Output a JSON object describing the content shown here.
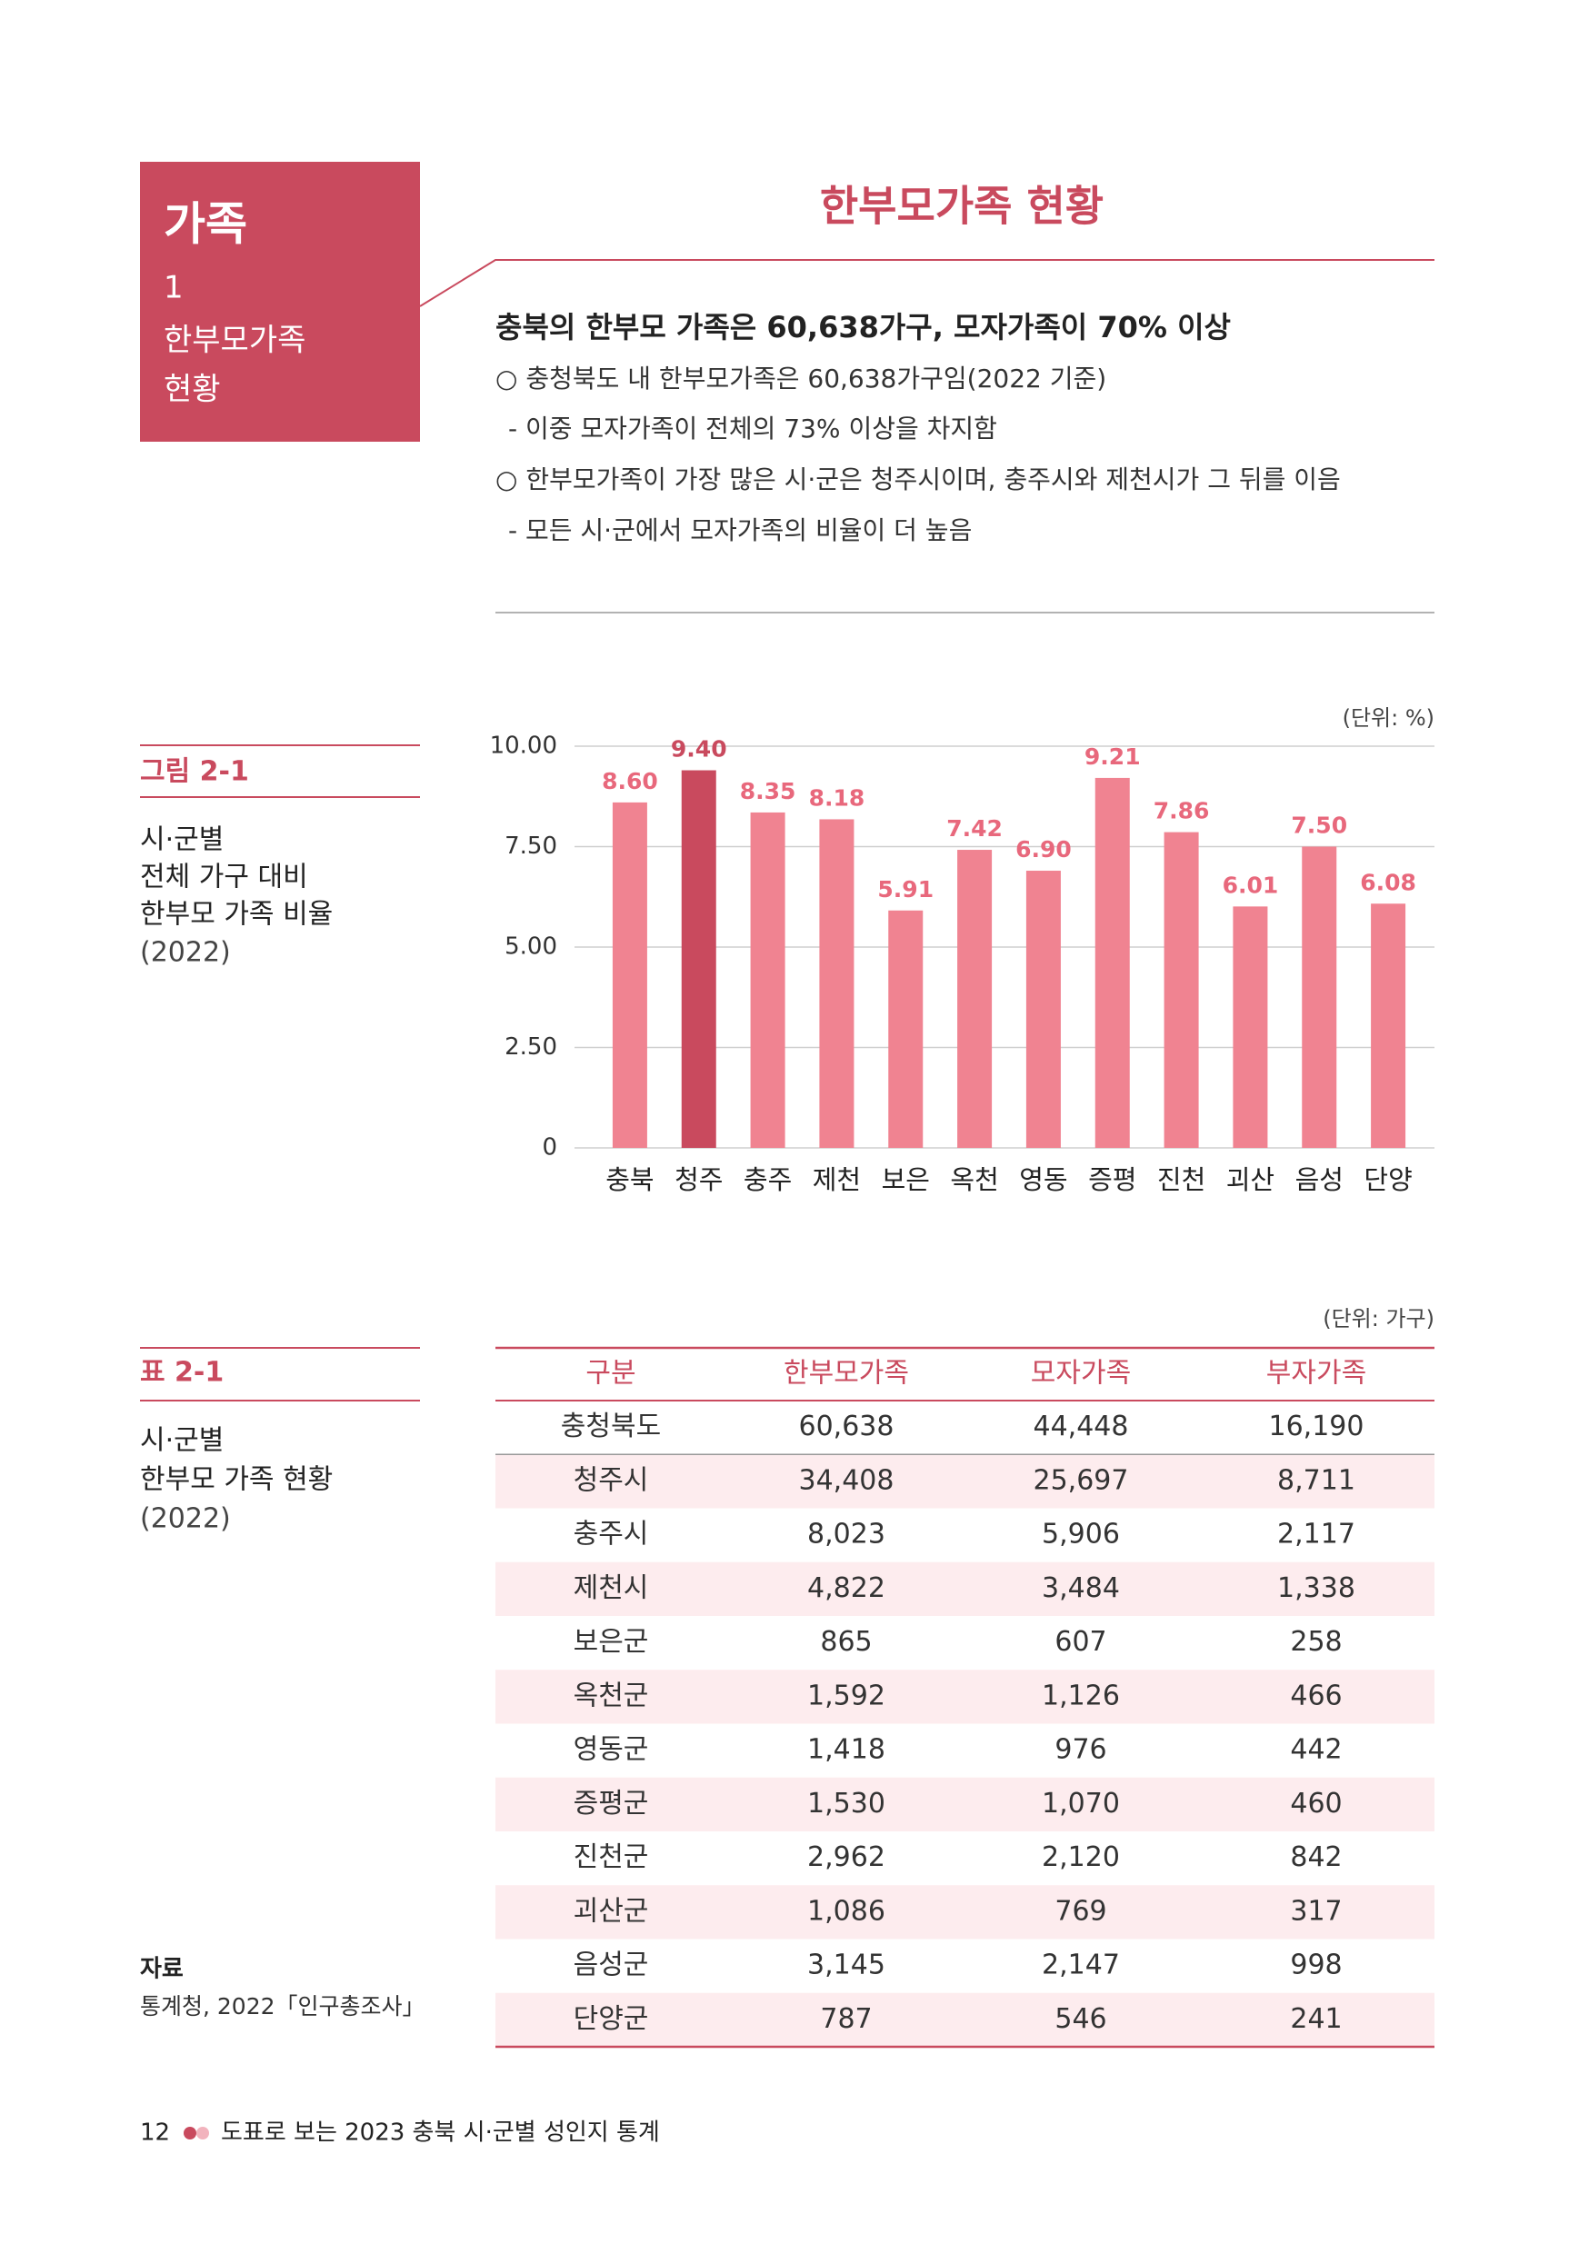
{
  "header": {
    "section": "가족",
    "number": "1",
    "topic_lines": [
      "한부모가족",
      "현황"
    ],
    "title": "한부모가족 현황"
  },
  "summary": {
    "headline": "충북의 한부모 가족은 60,638가구, 모자가족이 70% 이상",
    "bullets": [
      "○ 충청북도 내 한부모가족은 60,638가구임(2022 기준)",
      "- 이중 모자가족이 전체의 73% 이상을 차지함",
      "○ 한부모가족이 가장 많은 시·군은 청주시이며, 충주시와 제천시가 그 뒤를 이음",
      "- 모든 시·군에서 모자가족의 비율이 더 높음"
    ]
  },
  "figure": {
    "label": "그림 2-1",
    "caption_lines": [
      "시·군별",
      "전체 가구 대비",
      "한부모 가족 비율"
    ],
    "year": "(2022)"
  },
  "chart_data": {
    "type": "bar",
    "unit": "(단위: %)",
    "categories": [
      "충북",
      "청주",
      "충주",
      "제천",
      "보은",
      "옥천",
      "영동",
      "증평",
      "진천",
      "괴산",
      "음성",
      "단양"
    ],
    "values": [
      8.6,
      9.4,
      8.35,
      8.18,
      5.91,
      7.42,
      6.9,
      9.21,
      7.86,
      6.01,
      7.5,
      6.08
    ],
    "value_labels": [
      "8.60",
      "9.40",
      "8.35",
      "8.18",
      "5.91",
      "7.42",
      "6.90",
      "9.21",
      "7.86",
      "6.01",
      "7.50",
      "6.08"
    ],
    "colors": [
      "#f08391",
      "#c94a5e",
      "#f08391",
      "#f08391",
      "#f08391",
      "#f08391",
      "#f08391",
      "#f08391",
      "#f08391",
      "#f08391",
      "#f08391",
      "#f08391"
    ],
    "ylim": [
      0,
      10
    ],
    "yticks": [
      0,
      {
        "value": 2.5,
        "label": "2.50"
      },
      {
        "value": 5,
        "label": "5.00"
      },
      {
        "value": 7.5,
        "label": "7.50"
      },
      {
        "value": 10,
        "label": "10.00"
      }
    ],
    "grid": true
  },
  "table_caption": {
    "label": "표 2-1",
    "caption_lines": [
      "시·군별",
      "한부모 가족 현황"
    ],
    "year": "(2022)"
  },
  "table": {
    "unit": "(단위: 가구)",
    "header": [
      "구분",
      "한부모가족",
      "모자가족",
      "부자가족"
    ],
    "rows": [
      [
        "충청북도",
        "60,638",
        "44,448",
        "16,190"
      ],
      [
        "청주시",
        "34,408",
        "25,697",
        "8,711"
      ],
      [
        "충주시",
        "8,023",
        "5,906",
        "2,117"
      ],
      [
        "제천시",
        "4,822",
        "3,484",
        "1,338"
      ],
      [
        "보은군",
        "865",
        "607",
        "258"
      ],
      [
        "옥천군",
        "1,592",
        "1,126",
        "466"
      ],
      [
        "영동군",
        "1,418",
        "976",
        "442"
      ],
      [
        "증평군",
        "1,530",
        "1,070",
        "460"
      ],
      [
        "진천군",
        "2,962",
        "2,120",
        "842"
      ],
      [
        "괴산군",
        "1,086",
        "769",
        "317"
      ],
      [
        "음성군",
        "3,145",
        "2,147",
        "998"
      ],
      [
        "단양군",
        "787",
        "546",
        "241"
      ]
    ]
  },
  "source": {
    "label": "자료",
    "text": "통계청, 2022「인구총조사」"
  },
  "footer": {
    "page": "12",
    "text": "도표로 보는 2023 충북 시·군별 성인지 통계"
  }
}
